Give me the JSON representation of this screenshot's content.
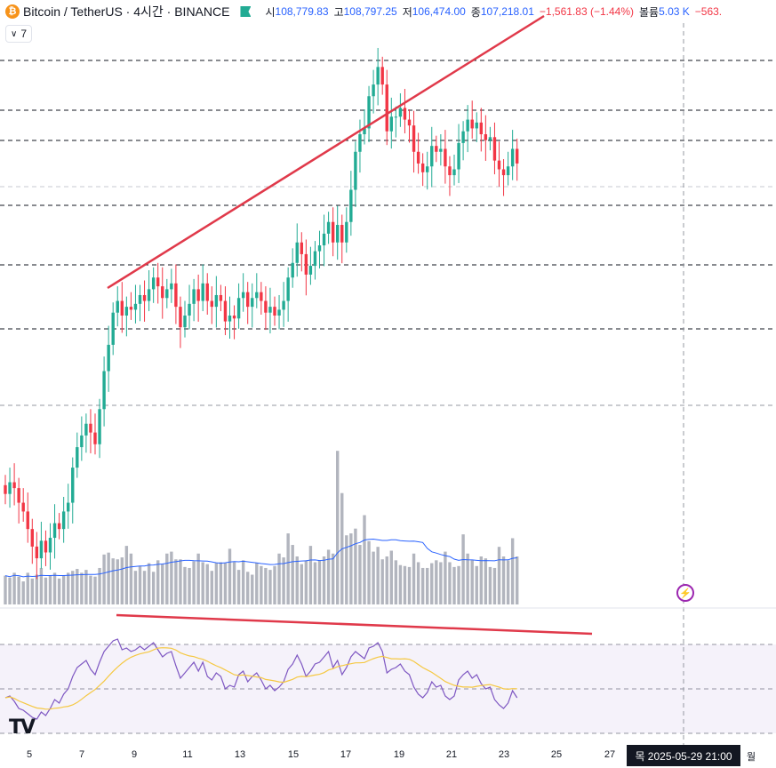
{
  "header": {
    "symbol": "Bitcoin / TetherUS · 4시간 · BINANCE",
    "open_label": "시",
    "open": "108,779.83",
    "high_label": "고",
    "high": "108,797.25",
    "low_label": "저",
    "low": "106,474.00",
    "close_label": "종",
    "close": "107,218.01",
    "change": "−1,561.83 (−1.44%)",
    "volume_label": "볼륨",
    "volume": "5.03 K",
    "volume_extra": "−563."
  },
  "indicator_toggle": {
    "count": "7"
  },
  "x_axis": {
    "ticks": [
      "5",
      "7",
      "9",
      "11",
      "13",
      "15",
      "17",
      "19",
      "21",
      "23",
      "25",
      "27",
      "월"
    ],
    "crosshair_label": "목 2025-05-29   21:00"
  },
  "colors": {
    "up": "#22ab94",
    "down": "#f23645",
    "rsi": "#7e57c2",
    "rsi_ma": "#f5c842",
    "vol_ma": "#2962ff",
    "trend": "#e0394a"
  },
  "chart_data": {
    "type": "candlestick",
    "timeframe": "4h",
    "close_series_approx": [
      104.9,
      105.3,
      105.1,
      104.6,
      104.3,
      103.7,
      103.1,
      102.7,
      103.3,
      102.9,
      103.4,
      103.9,
      103.7,
      104.3,
      104.6,
      105.8,
      106.5,
      106.9,
      107.3,
      107.0,
      106.6,
      107.8,
      109.1,
      110.0,
      111.1,
      111.5,
      111.0,
      111.3,
      111.2,
      111.4,
      111.7,
      111.5,
      111.9,
      112.3,
      112.0,
      111.6,
      111.9,
      112.1,
      111.3,
      110.6,
      111.0,
      111.4,
      111.9,
      111.5,
      112.1,
      111.5,
      111.3,
      111.7,
      111.5,
      110.8,
      111.0,
      110.9,
      111.6,
      111.8,
      111.3,
      111.6,
      111.8,
      111.5,
      111.1,
      111.3,
      111.0,
      111.2,
      111.5,
      112.3,
      112.8,
      113.5,
      113.1,
      112.4,
      112.7,
      113.2,
      113.4,
      113.8,
      114.2,
      113.5,
      114.1,
      113.5,
      114.2,
      115.3,
      116.6,
      117.2,
      117.4,
      118.5,
      118.9,
      119.5,
      118.9,
      117.3,
      117.8,
      117.8,
      118.1,
      117.7,
      117.5,
      116.6,
      116.2,
      115.9,
      116.1,
      116.8,
      116.6,
      116.7,
      116.1,
      115.8,
      116.0,
      116.9,
      117.3,
      117.7,
      117.4,
      117.6,
      117.2,
      117.0,
      117.1,
      116.3,
      116.0,
      115.8,
      116.1,
      116.7,
      116.2
    ],
    "volume_relative": [
      0.3,
      0.28,
      0.33,
      0.29,
      0.24,
      0.33,
      0.27,
      0.31,
      0.38,
      0.28,
      0.3,
      0.33,
      0.27,
      0.3,
      0.33,
      0.35,
      0.37,
      0.33,
      0.36,
      0.3,
      0.29,
      0.38,
      0.52,
      0.54,
      0.48,
      0.47,
      0.49,
      0.61,
      0.53,
      0.35,
      0.4,
      0.35,
      0.43,
      0.34,
      0.46,
      0.42,
      0.53,
      0.55,
      0.47,
      0.47,
      0.39,
      0.38,
      0.45,
      0.53,
      0.44,
      0.42,
      0.35,
      0.43,
      0.44,
      0.43,
      0.58,
      0.44,
      0.36,
      0.46,
      0.34,
      0.31,
      0.43,
      0.4,
      0.38,
      0.36,
      0.4,
      0.53,
      0.49,
      0.74,
      0.62,
      0.5,
      0.42,
      0.46,
      0.61,
      0.44,
      0.46,
      0.5,
      0.57,
      0.53,
      1.6,
      1.16,
      0.72,
      0.74,
      0.79,
      0.62,
      0.93,
      0.66,
      0.55,
      0.6,
      0.47,
      0.5,
      0.56,
      0.46,
      0.41,
      0.4,
      0.39,
      0.53,
      0.44,
      0.38,
      0.38,
      0.43,
      0.46,
      0.44,
      0.55,
      0.44,
      0.39,
      0.4,
      0.73,
      0.53,
      0.46,
      0.4,
      0.5,
      0.48,
      0.39,
      0.38,
      0.6,
      0.5,
      0.46,
      0.69,
      0.5
    ],
    "rsi_approx": [
      50,
      51,
      48,
      44,
      43,
      41,
      39,
      38,
      42,
      40,
      44,
      49,
      47,
      52,
      55,
      62,
      67,
      69,
      71,
      66,
      63,
      70,
      76,
      79,
      82,
      83,
      77,
      78,
      76,
      77,
      79,
      77,
      79,
      81,
      77,
      73,
      75,
      76,
      68,
      61,
      64,
      67,
      70,
      65,
      70,
      62,
      60,
      64,
      62,
      55,
      57,
      56,
      63,
      65,
      59,
      62,
      64,
      60,
      55,
      57,
      54,
      56,
      59,
      66,
      69,
      74,
      69,
      62,
      65,
      69,
      70,
      73,
      76,
      67,
      71,
      63,
      67,
      73,
      76,
      74,
      72,
      78,
      79,
      81,
      76,
      64,
      66,
      67,
      69,
      65,
      63,
      56,
      52,
      50,
      53,
      59,
      56,
      57,
      51,
      49,
      51,
      60,
      63,
      65,
      61,
      63,
      58,
      55,
      56,
      49,
      46,
      44,
      47,
      54,
      50
    ]
  }
}
